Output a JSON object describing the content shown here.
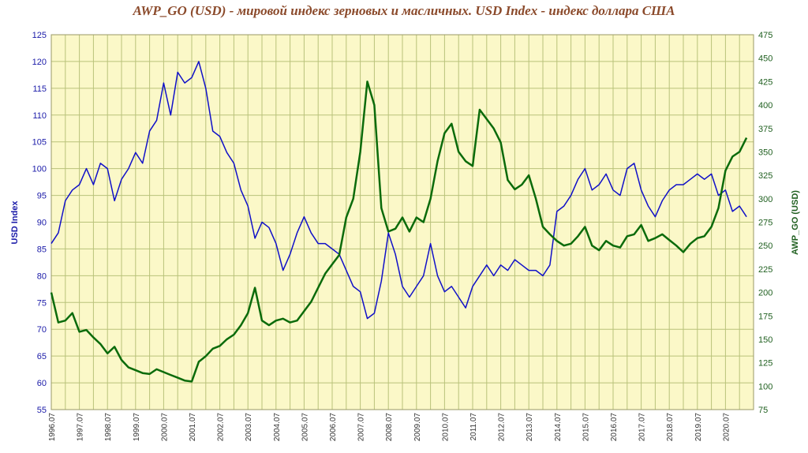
{
  "chart_data": {
    "type": "line",
    "title": "AWP_GO (USD) - мировой индекс зерновых и масличных. USD Index - индекс доллара США",
    "y_left_label": "USD Index",
    "y_right_label": "AWP_GO (USD)",
    "y_left_lim": [
      55,
      125
    ],
    "y_right_lim": [
      75,
      475
    ],
    "y_left_ticks": [
      "55",
      "60",
      "65",
      "70",
      "75",
      "80",
      "85",
      "90",
      "95",
      "100",
      "105",
      "110",
      "115",
      "120",
      "125"
    ],
    "y_right_ticks": [
      "75",
      "100",
      "125",
      "150",
      "175",
      "200",
      "225",
      "250",
      "275",
      "300",
      "325",
      "350",
      "375",
      "400",
      "425",
      "450",
      "475"
    ],
    "x_ticks": [
      "1996.07",
      "1997.07",
      "1998.07",
      "1999.07",
      "2000.07",
      "2001.07",
      "2002.07",
      "2003.07",
      "2004.07",
      "2005.07",
      "2006.07",
      "2007.07",
      "2008.07",
      "2009.07",
      "2010.07",
      "2011.07",
      "2012.07",
      "2013.07",
      "2014.07",
      "2015.07",
      "2016.07",
      "2017.07",
      "2018.07",
      "2019.07",
      "2020.07"
    ],
    "x_range": [
      1996.5,
      2021.5
    ],
    "grid": true,
    "colors": {
      "usd": "#1010c8",
      "awp": "#0b6b0b",
      "background": "#fbf8c8",
      "grid": "#b9c27a",
      "left_axis": "#1a1aa8",
      "right_axis": "#1f5f1f",
      "title": "#8b4a2b"
    },
    "series": [
      {
        "name": "USD Index",
        "axis": "left",
        "x": [
          1996.5,
          1996.75,
          1997.0,
          1997.25,
          1997.5,
          1997.75,
          1998.0,
          1998.25,
          1998.5,
          1998.75,
          1999.0,
          1999.25,
          1999.5,
          1999.75,
          2000.0,
          2000.25,
          2000.5,
          2000.75,
          2001.0,
          2001.25,
          2001.5,
          2001.75,
          2002.0,
          2002.25,
          2002.5,
          2002.75,
          2003.0,
          2003.25,
          2003.5,
          2003.75,
          2004.0,
          2004.25,
          2004.5,
          2004.75,
          2005.0,
          2005.25,
          2005.5,
          2005.75,
          2006.0,
          2006.25,
          2006.5,
          2006.75,
          2007.0,
          2007.25,
          2007.5,
          2007.75,
          2008.0,
          2008.25,
          2008.5,
          2008.75,
          2009.0,
          2009.25,
          2009.5,
          2009.75,
          2010.0,
          2010.25,
          2010.5,
          2010.75,
          2011.0,
          2011.25,
          2011.5,
          2011.75,
          2012.0,
          2012.25,
          2012.5,
          2012.75,
          2013.0,
          2013.25,
          2013.5,
          2013.75,
          2014.0,
          2014.25,
          2014.5,
          2014.75,
          2015.0,
          2015.25,
          2015.5,
          2015.75,
          2016.0,
          2016.25,
          2016.5,
          2016.75,
          2017.0,
          2017.25,
          2017.5,
          2017.75,
          2018.0,
          2018.25,
          2018.5,
          2018.75,
          2019.0,
          2019.25,
          2019.5,
          2019.75,
          2020.0,
          2020.25,
          2020.5,
          2020.75,
          2021.0,
          2021.25
        ],
        "values": [
          86,
          88,
          94,
          96,
          97,
          100,
          97,
          101,
          100,
          94,
          98,
          100,
          103,
          101,
          107,
          109,
          116,
          110,
          118,
          116,
          117,
          120,
          115,
          107,
          106,
          103,
          101,
          96,
          93,
          87,
          90,
          89,
          86,
          81,
          84,
          88,
          91,
          88,
          86,
          86,
          85,
          84,
          81,
          78,
          77,
          72,
          73,
          79,
          88,
          84,
          78,
          76,
          78,
          80,
          86,
          80,
          77,
          78,
          76,
          74,
          78,
          80,
          82,
          80,
          82,
          81,
          83,
          82,
          81,
          81,
          80,
          82,
          92,
          93,
          95,
          98,
          100,
          96,
          97,
          99,
          96,
          95,
          100,
          101,
          96,
          93,
          91,
          94,
          96,
          97,
          97,
          98,
          99,
          98,
          99,
          95,
          96,
          92,
          93,
          91
        ]
      },
      {
        "name": "AWP_GO (USD)",
        "axis": "right",
        "x": [
          1996.5,
          1996.75,
          1997.0,
          1997.25,
          1997.5,
          1997.75,
          1998.0,
          1998.25,
          1998.5,
          1998.75,
          1999.0,
          1999.25,
          1999.5,
          1999.75,
          2000.0,
          2000.25,
          2000.5,
          2000.75,
          2001.0,
          2001.25,
          2001.5,
          2001.75,
          2002.0,
          2002.25,
          2002.5,
          2002.75,
          2003.0,
          2003.25,
          2003.5,
          2003.75,
          2004.0,
          2004.25,
          2004.5,
          2004.75,
          2005.0,
          2005.25,
          2005.5,
          2005.75,
          2006.0,
          2006.25,
          2006.5,
          2006.75,
          2007.0,
          2007.25,
          2007.5,
          2007.75,
          2008.0,
          2008.25,
          2008.5,
          2008.75,
          2009.0,
          2009.25,
          2009.5,
          2009.75,
          2010.0,
          2010.25,
          2010.5,
          2010.75,
          2011.0,
          2011.25,
          2011.5,
          2011.75,
          2012.0,
          2012.25,
          2012.5,
          2012.75,
          2013.0,
          2013.25,
          2013.5,
          2013.75,
          2014.0,
          2014.25,
          2014.5,
          2014.75,
          2015.0,
          2015.25,
          2015.5,
          2015.75,
          2016.0,
          2016.25,
          2016.5,
          2016.75,
          2017.0,
          2017.25,
          2017.5,
          2017.75,
          2018.0,
          2018.25,
          2018.5,
          2018.75,
          2019.0,
          2019.25,
          2019.5,
          2019.75,
          2020.0,
          2020.25,
          2020.5,
          2020.75,
          2021.0,
          2021.25
        ],
        "values": [
          200,
          168,
          170,
          178,
          158,
          160,
          152,
          145,
          135,
          142,
          128,
          120,
          117,
          114,
          113,
          118,
          115,
          112,
          109,
          106,
          105,
          126,
          132,
          140,
          143,
          150,
          155,
          165,
          178,
          205,
          170,
          165,
          170,
          172,
          168,
          170,
          180,
          190,
          205,
          220,
          230,
          240,
          280,
          300,
          350,
          425,
          400,
          290,
          265,
          268,
          280,
          265,
          280,
          275,
          300,
          340,
          370,
          380,
          350,
          340,
          335,
          395,
          385,
          375,
          360,
          320,
          310,
          315,
          325,
          300,
          270,
          262,
          255,
          250,
          252,
          260,
          270,
          250,
          245,
          255,
          250,
          248,
          260,
          262,
          272,
          255,
          258,
          262,
          256,
          250,
          243,
          252,
          258,
          260,
          270,
          290,
          330,
          345,
          350,
          365
        ]
      }
    ]
  }
}
